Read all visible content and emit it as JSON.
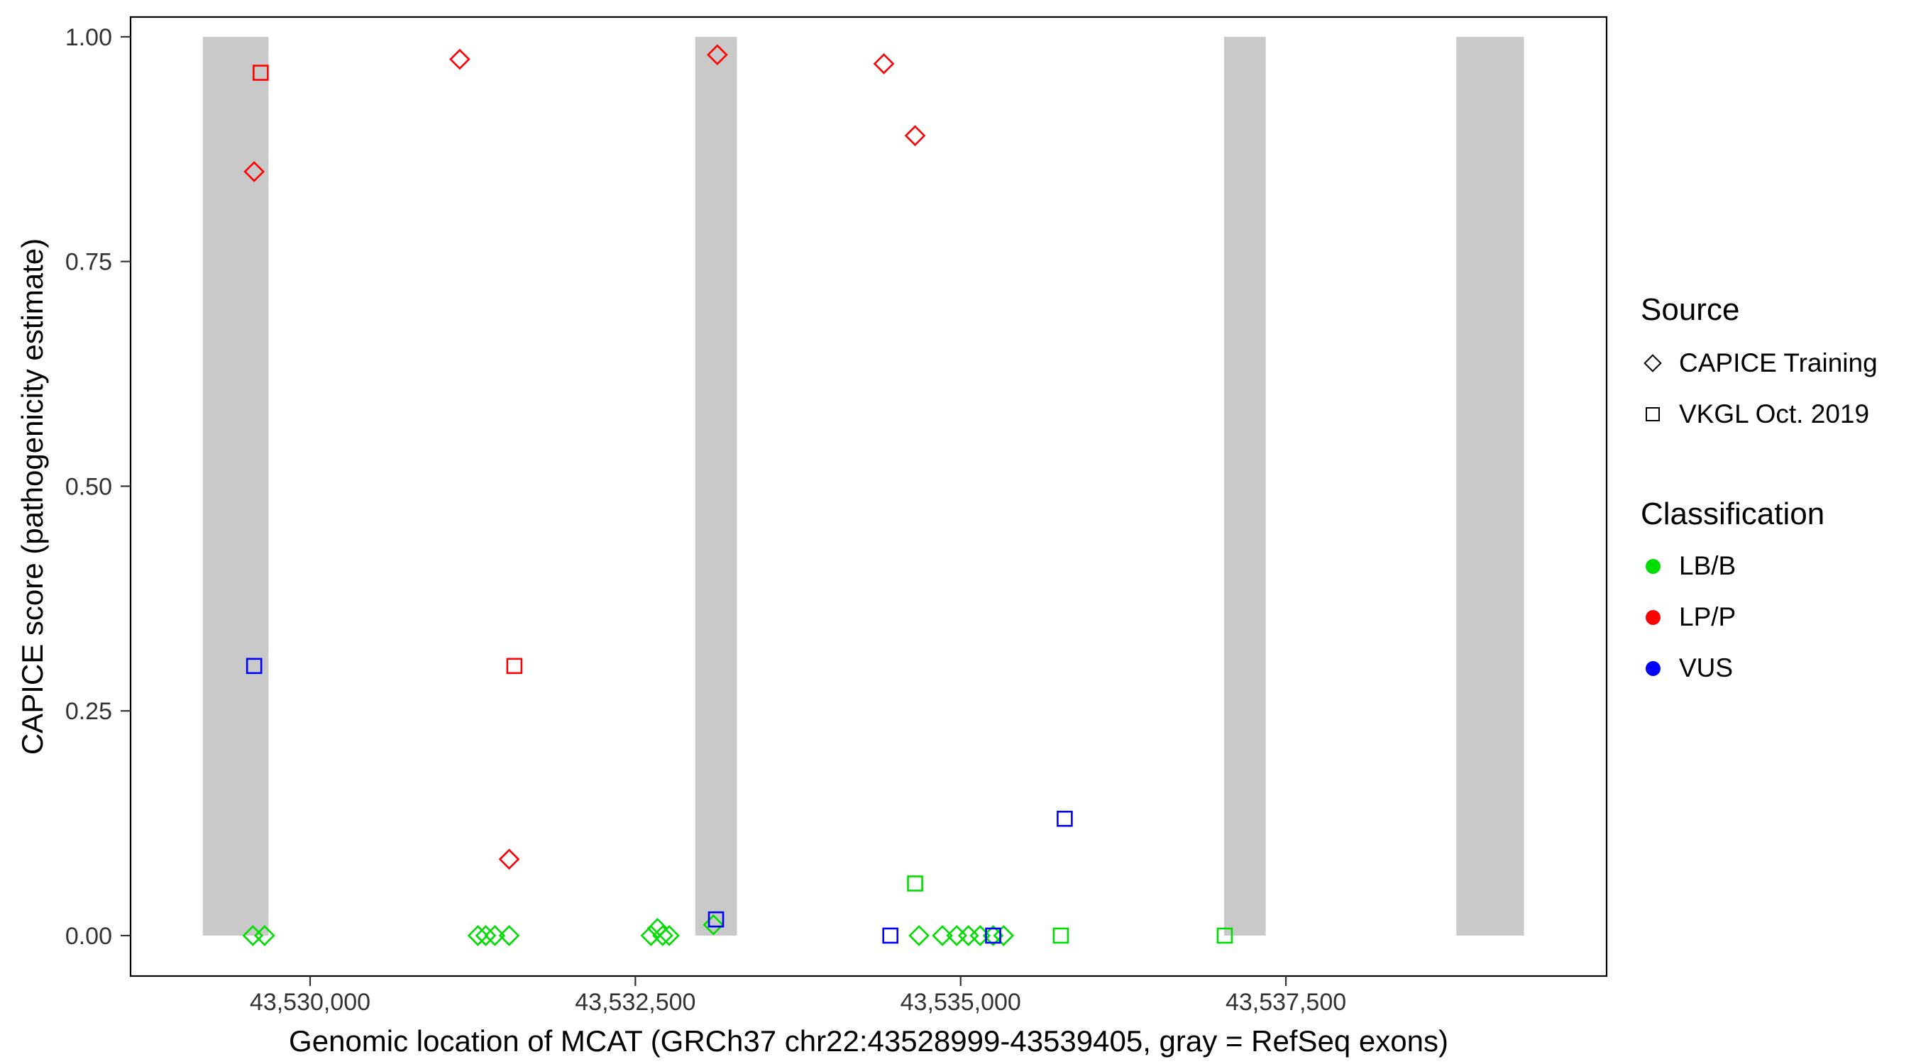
{
  "figure": {
    "x_axis_title": "Genomic location of MCAT (GRCh37 chr22:43528999-43539405, gray = RefSeq exons)",
    "y_axis_title": "CAPICE score (pathogenicity estimate)"
  },
  "legend": {
    "source": {
      "title": "Source",
      "items": [
        {
          "label": "CAPICE Training",
          "shape": "diamond"
        },
        {
          "label": "VKGL Oct. 2019",
          "shape": "square"
        }
      ]
    },
    "classification": {
      "title": "Classification",
      "items": [
        {
          "label": "LB/B",
          "color": "#00DD00"
        },
        {
          "label": "LP/P",
          "color": "#FF0000"
        },
        {
          "label": "VUS",
          "color": "#0000FF"
        }
      ]
    }
  },
  "chart_data": {
    "type": "scatter",
    "title": "",
    "xlabel": "Genomic location of MCAT (GRCh37 chr22:43528999-43539405, gray = RefSeq exons)",
    "ylabel": "CAPICE score (pathogenicity estimate)",
    "grid": false,
    "legend_position": "right",
    "x_ticks": [
      {
        "value": 43530000,
        "label": "43,530,000"
      },
      {
        "value": 43532500,
        "label": "43,532,500"
      },
      {
        "value": 43535000,
        "label": "43,535,000"
      },
      {
        "value": 43537500,
        "label": "43,537,500"
      }
    ],
    "y_ticks": [
      {
        "value": 0.0,
        "label": "0.00"
      },
      {
        "value": 0.25,
        "label": "0.25"
      },
      {
        "value": 0.5,
        "label": "0.50"
      },
      {
        "value": 0.75,
        "label": "0.75"
      },
      {
        "value": 1.0,
        "label": "1.00"
      }
    ],
    "x_domain": [
      43528620,
      43539965
    ],
    "y_domain": [
      -0.045,
      1.022
    ],
    "xlim_nominal": [
      43528999,
      43539405
    ],
    "ylim_nominal": [
      0,
      1
    ],
    "exon_color": "#C9C9C9",
    "exons": [
      {
        "start": 43529175,
        "end": 43529680
      },
      {
        "start": 43532960,
        "end": 43533280
      },
      {
        "start": 43537025,
        "end": 43537345
      },
      {
        "start": 43538810,
        "end": 43539330
      }
    ],
    "series": [
      {
        "source": "CAPICE Training",
        "classification": "LB/B",
        "shape": "diamond",
        "color": "#00DD00",
        "points": [
          [
            43529560,
            0.0
          ],
          [
            43529650,
            0.0
          ],
          [
            43531290,
            0.0
          ],
          [
            43531350,
            0.0
          ],
          [
            43531420,
            0.0
          ],
          [
            43531530,
            0.0
          ],
          [
            43532620,
            0.0
          ],
          [
            43532670,
            0.008
          ],
          [
            43532710,
            0.0
          ],
          [
            43532760,
            0.0
          ],
          [
            43533100,
            0.012
          ],
          [
            43534680,
            0.0
          ],
          [
            43534860,
            0.0
          ],
          [
            43534970,
            0.0
          ],
          [
            43535060,
            0.0
          ],
          [
            43535150,
            0.0
          ],
          [
            43535250,
            0.0
          ],
          [
            43535330,
            0.0
          ]
        ]
      },
      {
        "source": "VKGL Oct. 2019",
        "classification": "LB/B",
        "shape": "square",
        "color": "#00DD00",
        "points": [
          [
            43534650,
            0.058
          ],
          [
            43535770,
            0.0
          ],
          [
            43537030,
            0.0
          ]
        ]
      },
      {
        "source": "VKGL Oct. 2019",
        "classification": "VUS",
        "shape": "square",
        "color": "#0000FF",
        "points": [
          [
            43529570,
            0.3
          ],
          [
            43533120,
            0.018
          ],
          [
            43534460,
            0.0
          ],
          [
            43535250,
            0.0
          ],
          [
            43535800,
            0.13
          ]
        ]
      },
      {
        "source": "CAPICE Training",
        "classification": "LP/P",
        "shape": "diamond",
        "color": "#FF0000",
        "points": [
          [
            43529570,
            0.85
          ],
          [
            43531150,
            0.975
          ],
          [
            43531530,
            0.085
          ],
          [
            43533130,
            0.98
          ],
          [
            43534410,
            0.97
          ],
          [
            43534650,
            0.89
          ]
        ]
      },
      {
        "source": "VKGL Oct. 2019",
        "classification": "LP/P",
        "shape": "square",
        "color": "#FF0000",
        "points": [
          [
            43529620,
            0.96
          ],
          [
            43531570,
            0.3
          ]
        ]
      }
    ]
  }
}
